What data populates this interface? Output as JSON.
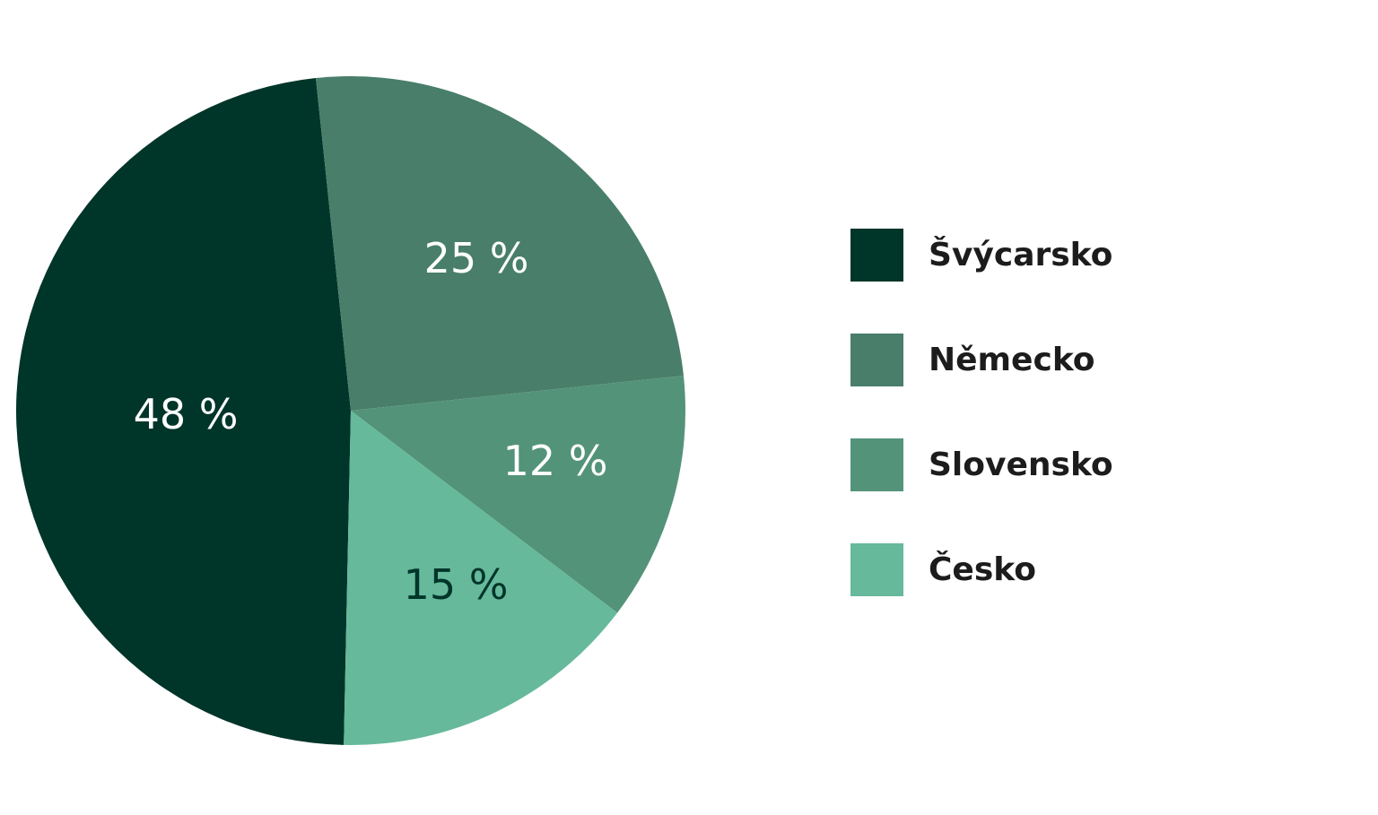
{
  "chart_data": {
    "type": "pie",
    "slices": [
      {
        "label": "Švýcarsko",
        "value": 48,
        "value_label": "48 %",
        "color": "#00352a",
        "text_color": "#ffffff"
      },
      {
        "label": "Německo",
        "value": 25,
        "value_label": "25 %",
        "color": "#487e6a",
        "text_color": "#ffffff"
      },
      {
        "label": "Slovensko",
        "value": 12,
        "value_label": "12 %",
        "color": "#53937a",
        "text_color": "#ffffff"
      },
      {
        "label": "Česko",
        "value": 15,
        "value_label": "15 %",
        "color": "#66b99b",
        "text_color": "#00352a"
      }
    ],
    "legend": {
      "placement": "right",
      "order": [
        "Švýcarsko",
        "Německo",
        "Slovensko",
        "Česko"
      ]
    }
  }
}
